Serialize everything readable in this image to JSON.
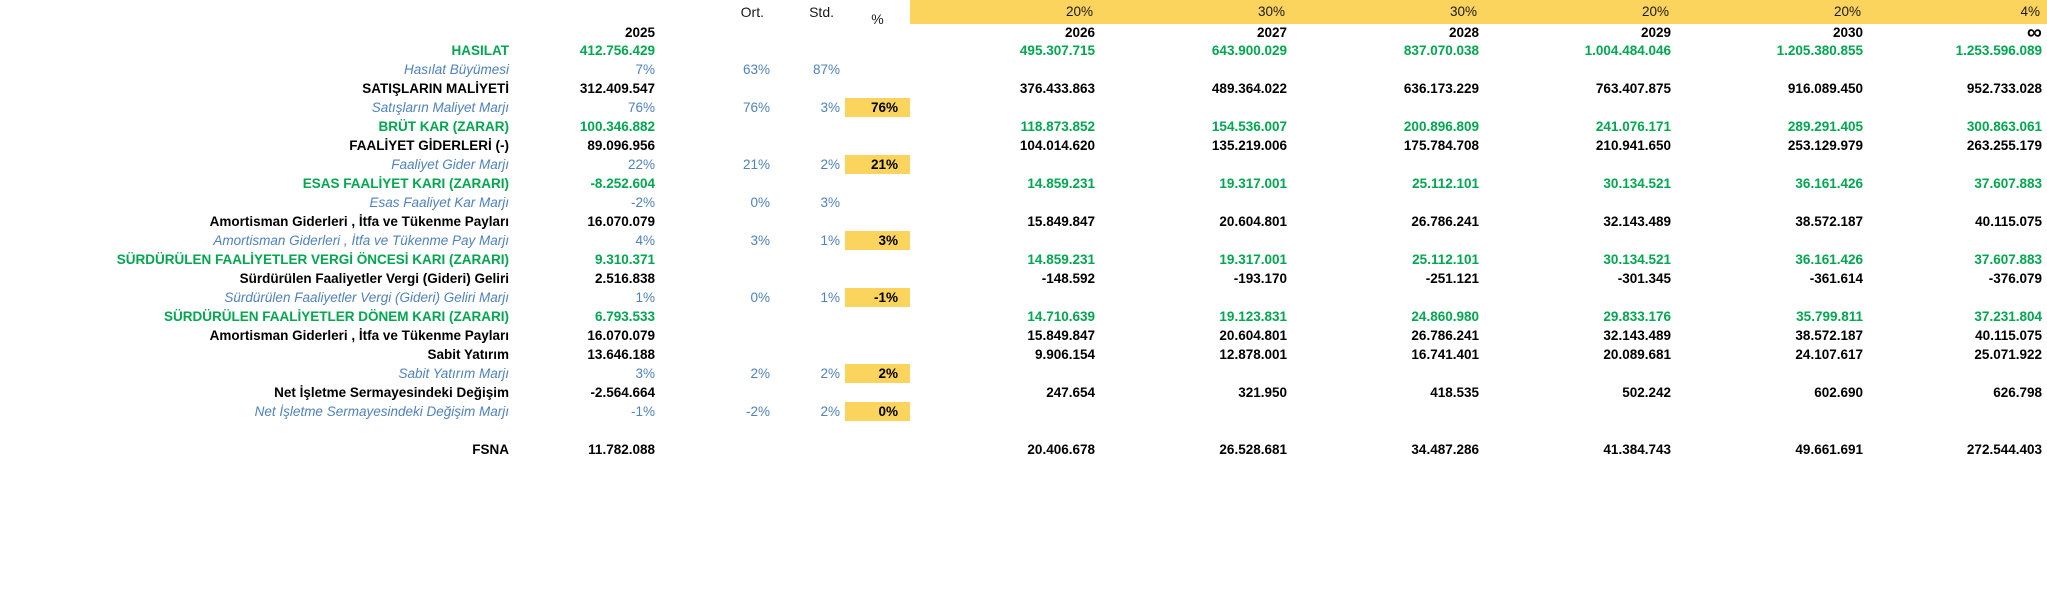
{
  "header": {
    "ort_label": "Ort.",
    "std_label": "Std.",
    "pct_label": "%",
    "base_year": "2025",
    "weights": [
      "20%",
      "30%",
      "30%",
      "20%",
      "20%",
      "4%"
    ],
    "years": [
      "2026",
      "2027",
      "2028",
      "2029",
      "2030",
      "∞"
    ]
  },
  "colors": {
    "accent_green": "#00a74f",
    "accent_blue": "#4f81bd",
    "highlight_yellow": "#fbd45e"
  },
  "rows": [
    {
      "style": "green-bold",
      "label": "HASILAT",
      "y2025": "412.756.429",
      "ort": "",
      "std": "",
      "pct": "",
      "pct_hl": false,
      "years": [
        "495.307.715",
        "643.900.029",
        "837.070.038",
        "1.004.484.046",
        "1.205.380.855",
        "1.253.596.089"
      ]
    },
    {
      "style": "blue-italic",
      "label": "Hasılat Büyümesi",
      "y2025": "7%",
      "ort": "63%",
      "std": "87%",
      "pct": "",
      "pct_hl": false,
      "years": [
        "",
        "",
        "",
        "",
        "",
        ""
      ]
    },
    {
      "style": "black-bold",
      "label": "SATIŞLARIN MALİYETİ",
      "y2025": "312.409.547",
      "ort": "",
      "std": "",
      "pct": "",
      "pct_hl": false,
      "years": [
        "376.433.863",
        "489.364.022",
        "636.173.229",
        "763.407.875",
        "916.089.450",
        "952.733.028"
      ]
    },
    {
      "style": "blue-italic",
      "label": "Satışların Maliyet Marjı",
      "y2025": "76%",
      "ort": "76%",
      "std": "3%",
      "pct": "76%",
      "pct_hl": true,
      "years": [
        "",
        "",
        "",
        "",
        "",
        ""
      ]
    },
    {
      "style": "green-bold",
      "label": "BRÜT KAR (ZARAR)",
      "y2025": "100.346.882",
      "ort": "",
      "std": "",
      "pct": "",
      "pct_hl": false,
      "years": [
        "118.873.852",
        "154.536.007",
        "200.896.809",
        "241.076.171",
        "289.291.405",
        "300.863.061"
      ]
    },
    {
      "style": "black-bold",
      "label": "FAALİYET GİDERLERİ (-)",
      "y2025": "89.096.956",
      "ort": "",
      "std": "",
      "pct": "",
      "pct_hl": false,
      "years": [
        "104.014.620",
        "135.219.006",
        "175.784.708",
        "210.941.650",
        "253.129.979",
        "263.255.179"
      ]
    },
    {
      "style": "blue-italic",
      "label": "Faaliyet Gider Marjı",
      "y2025": "22%",
      "ort": "21%",
      "std": "2%",
      "pct": "21%",
      "pct_hl": true,
      "years": [
        "",
        "",
        "",
        "",
        "",
        ""
      ]
    },
    {
      "style": "green-bold",
      "label": "ESAS FAALİYET KARI (ZARARI)",
      "y2025": "-8.252.604",
      "ort": "",
      "std": "",
      "pct": "",
      "pct_hl": false,
      "years": [
        "14.859.231",
        "19.317.001",
        "25.112.101",
        "30.134.521",
        "36.161.426",
        "37.607.883"
      ]
    },
    {
      "style": "blue-italic",
      "label": "Esas Faaliyet Kar Marjı",
      "y2025": "-2%",
      "ort": "0%",
      "std": "3%",
      "pct": "",
      "pct_hl": false,
      "years": [
        "",
        "",
        "",
        "",
        "",
        ""
      ]
    },
    {
      "style": "black-bold",
      "label": "Amortisman Giderleri , İtfa ve Tükenme Payları",
      "y2025": "16.070.079",
      "ort": "",
      "std": "",
      "pct": "",
      "pct_hl": false,
      "years": [
        "15.849.847",
        "20.604.801",
        "26.786.241",
        "32.143.489",
        "38.572.187",
        "40.115.075"
      ]
    },
    {
      "style": "blue-italic",
      "label": "Amortisman Giderleri , İtfa ve Tükenme Pay Marjı",
      "y2025": "4%",
      "ort": "3%",
      "std": "1%",
      "pct": "3%",
      "pct_hl": true,
      "years": [
        "",
        "",
        "",
        "",
        "",
        ""
      ]
    },
    {
      "style": "green-bold",
      "label": "SÜRDÜRÜLEN FAALİYETLER VERGİ ÖNCESİ KARI (ZARARI)",
      "y2025": "9.310.371",
      "ort": "",
      "std": "",
      "pct": "",
      "pct_hl": false,
      "years": [
        "14.859.231",
        "19.317.001",
        "25.112.101",
        "30.134.521",
        "36.161.426",
        "37.607.883"
      ]
    },
    {
      "style": "black-bold",
      "label": "Sürdürülen Faaliyetler Vergi (Gideri) Geliri",
      "y2025": "2.516.838",
      "ort": "",
      "std": "",
      "pct": "",
      "pct_hl": false,
      "years": [
        "-148.592",
        "-193.170",
        "-251.121",
        "-301.345",
        "-361.614",
        "-376.079"
      ]
    },
    {
      "style": "blue-italic",
      "label": "Sürdürülen Faaliyetler Vergi (Gideri) Geliri Marjı",
      "y2025": "1%",
      "ort": "0%",
      "std": "1%",
      "pct": "-1%",
      "pct_hl": true,
      "years": [
        "",
        "",
        "",
        "",
        "",
        ""
      ]
    },
    {
      "style": "green-bold",
      "label": "SÜRDÜRÜLEN FAALİYETLER DÖNEM KARI (ZARARI)",
      "y2025": "6.793.533",
      "ort": "",
      "std": "",
      "pct": "",
      "pct_hl": false,
      "years": [
        "14.710.639",
        "19.123.831",
        "24.860.980",
        "29.833.176",
        "35.799.811",
        "37.231.804"
      ]
    },
    {
      "style": "black-bold",
      "label": "Amortisman Giderleri , İtfa ve Tükenme Payları",
      "y2025": "16.070.079",
      "ort": "",
      "std": "",
      "pct": "",
      "pct_hl": false,
      "years": [
        "15.849.847",
        "20.604.801",
        "26.786.241",
        "32.143.489",
        "38.572.187",
        "40.115.075"
      ]
    },
    {
      "style": "black-bold",
      "label": "Sabit Yatırım",
      "y2025": "13.646.188",
      "ort": "",
      "std": "",
      "pct": "",
      "pct_hl": false,
      "years": [
        "9.906.154",
        "12.878.001",
        "16.741.401",
        "20.089.681",
        "24.107.617",
        "25.071.922"
      ]
    },
    {
      "style": "blue-italic",
      "label": "Sabit Yatırım Marjı",
      "y2025": "3%",
      "ort": "2%",
      "std": "2%",
      "pct": "2%",
      "pct_hl": true,
      "years": [
        "",
        "",
        "",
        "",
        "",
        ""
      ]
    },
    {
      "style": "black-bold",
      "label": "Net İşletme Sermayesindeki Değişim",
      "y2025": "-2.564.664",
      "ort": "",
      "std": "",
      "pct": "",
      "pct_hl": false,
      "years": [
        "247.654",
        "321.950",
        "418.535",
        "502.242",
        "602.690",
        "626.798"
      ]
    },
    {
      "style": "blue-italic",
      "label": "Net İşletme Sermayesindeki Değişim Marjı",
      "y2025": "-1%",
      "ort": "-2%",
      "std": "2%",
      "pct": "0%",
      "pct_hl": true,
      "years": [
        "",
        "",
        "",
        "",
        "",
        ""
      ]
    },
    {
      "style": "blank",
      "label": "",
      "y2025": "",
      "ort": "",
      "std": "",
      "pct": "",
      "pct_hl": false,
      "years": [
        "",
        "",
        "",
        "",
        "",
        ""
      ]
    },
    {
      "style": "black-bold",
      "label": "FSNA",
      "y2025": "11.782.088",
      "ort": "",
      "std": "",
      "pct": "",
      "pct_hl": false,
      "years": [
        "20.406.678",
        "26.528.681",
        "34.487.286",
        "41.384.743",
        "49.661.691",
        "272.544.403"
      ]
    }
  ]
}
